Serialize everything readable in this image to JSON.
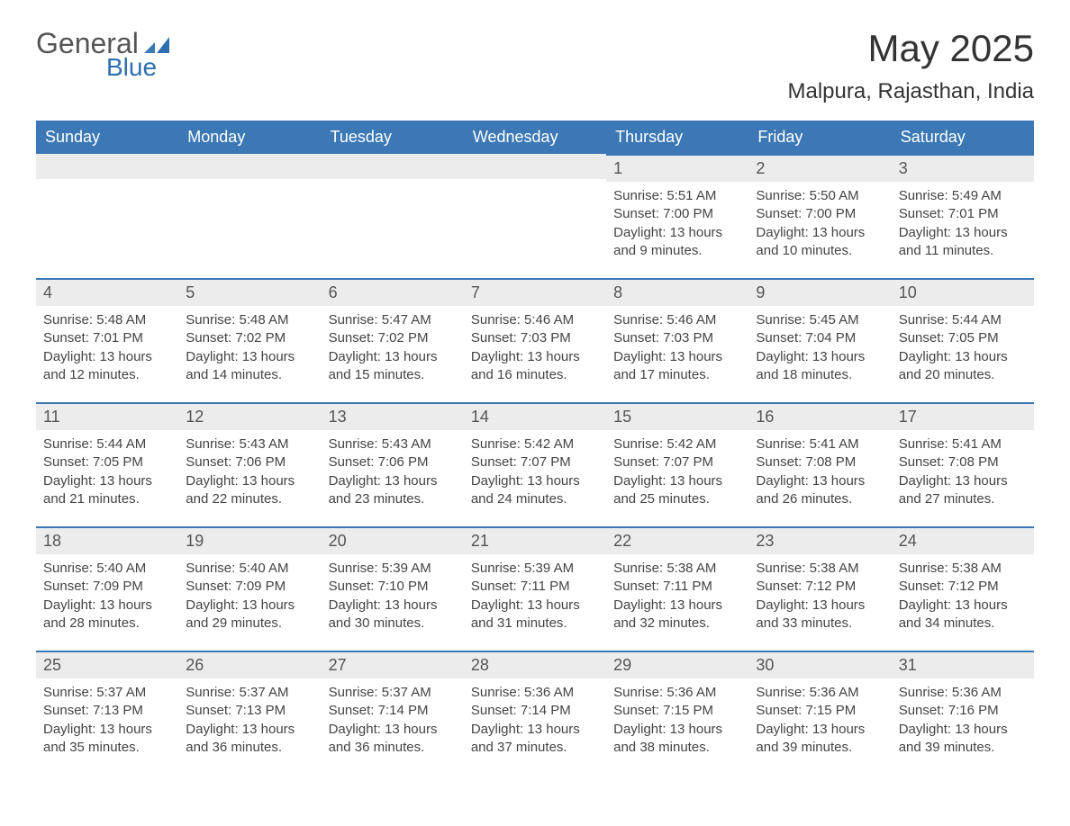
{
  "logo": {
    "text1": "General",
    "text2": "Blue"
  },
  "header": {
    "month_title": "May 2025",
    "location": "Malpura, Rajasthan, India"
  },
  "colors": {
    "header_bg": "#3b78b5",
    "header_text": "#ffffff",
    "day_bar_bg": "#ececec",
    "day_bar_border": "#3b78b5",
    "body_text": "#444444",
    "background": "#ffffff",
    "logo_blue": "#2f6fb0",
    "logo_gray": "#555555"
  },
  "day_headers": [
    "Sunday",
    "Monday",
    "Tuesday",
    "Wednesday",
    "Thursday",
    "Friday",
    "Saturday"
  ],
  "weeks": [
    [
      null,
      null,
      null,
      null,
      {
        "n": "1",
        "sr": "Sunrise: 5:51 AM",
        "ss": "Sunset: 7:00 PM",
        "dl": "Daylight: 13 hours and 9 minutes."
      },
      {
        "n": "2",
        "sr": "Sunrise: 5:50 AM",
        "ss": "Sunset: 7:00 PM",
        "dl": "Daylight: 13 hours and 10 minutes."
      },
      {
        "n": "3",
        "sr": "Sunrise: 5:49 AM",
        "ss": "Sunset: 7:01 PM",
        "dl": "Daylight: 13 hours and 11 minutes."
      }
    ],
    [
      {
        "n": "4",
        "sr": "Sunrise: 5:48 AM",
        "ss": "Sunset: 7:01 PM",
        "dl": "Daylight: 13 hours and 12 minutes."
      },
      {
        "n": "5",
        "sr": "Sunrise: 5:48 AM",
        "ss": "Sunset: 7:02 PM",
        "dl": "Daylight: 13 hours and 14 minutes."
      },
      {
        "n": "6",
        "sr": "Sunrise: 5:47 AM",
        "ss": "Sunset: 7:02 PM",
        "dl": "Daylight: 13 hours and 15 minutes."
      },
      {
        "n": "7",
        "sr": "Sunrise: 5:46 AM",
        "ss": "Sunset: 7:03 PM",
        "dl": "Daylight: 13 hours and 16 minutes."
      },
      {
        "n": "8",
        "sr": "Sunrise: 5:46 AM",
        "ss": "Sunset: 7:03 PM",
        "dl": "Daylight: 13 hours and 17 minutes."
      },
      {
        "n": "9",
        "sr": "Sunrise: 5:45 AM",
        "ss": "Sunset: 7:04 PM",
        "dl": "Daylight: 13 hours and 18 minutes."
      },
      {
        "n": "10",
        "sr": "Sunrise: 5:44 AM",
        "ss": "Sunset: 7:05 PM",
        "dl": "Daylight: 13 hours and 20 minutes."
      }
    ],
    [
      {
        "n": "11",
        "sr": "Sunrise: 5:44 AM",
        "ss": "Sunset: 7:05 PM",
        "dl": "Daylight: 13 hours and 21 minutes."
      },
      {
        "n": "12",
        "sr": "Sunrise: 5:43 AM",
        "ss": "Sunset: 7:06 PM",
        "dl": "Daylight: 13 hours and 22 minutes."
      },
      {
        "n": "13",
        "sr": "Sunrise: 5:43 AM",
        "ss": "Sunset: 7:06 PM",
        "dl": "Daylight: 13 hours and 23 minutes."
      },
      {
        "n": "14",
        "sr": "Sunrise: 5:42 AM",
        "ss": "Sunset: 7:07 PM",
        "dl": "Daylight: 13 hours and 24 minutes."
      },
      {
        "n": "15",
        "sr": "Sunrise: 5:42 AM",
        "ss": "Sunset: 7:07 PM",
        "dl": "Daylight: 13 hours and 25 minutes."
      },
      {
        "n": "16",
        "sr": "Sunrise: 5:41 AM",
        "ss": "Sunset: 7:08 PM",
        "dl": "Daylight: 13 hours and 26 minutes."
      },
      {
        "n": "17",
        "sr": "Sunrise: 5:41 AM",
        "ss": "Sunset: 7:08 PM",
        "dl": "Daylight: 13 hours and 27 minutes."
      }
    ],
    [
      {
        "n": "18",
        "sr": "Sunrise: 5:40 AM",
        "ss": "Sunset: 7:09 PM",
        "dl": "Daylight: 13 hours and 28 minutes."
      },
      {
        "n": "19",
        "sr": "Sunrise: 5:40 AM",
        "ss": "Sunset: 7:09 PM",
        "dl": "Daylight: 13 hours and 29 minutes."
      },
      {
        "n": "20",
        "sr": "Sunrise: 5:39 AM",
        "ss": "Sunset: 7:10 PM",
        "dl": "Daylight: 13 hours and 30 minutes."
      },
      {
        "n": "21",
        "sr": "Sunrise: 5:39 AM",
        "ss": "Sunset: 7:11 PM",
        "dl": "Daylight: 13 hours and 31 minutes."
      },
      {
        "n": "22",
        "sr": "Sunrise: 5:38 AM",
        "ss": "Sunset: 7:11 PM",
        "dl": "Daylight: 13 hours and 32 minutes."
      },
      {
        "n": "23",
        "sr": "Sunrise: 5:38 AM",
        "ss": "Sunset: 7:12 PM",
        "dl": "Daylight: 13 hours and 33 minutes."
      },
      {
        "n": "24",
        "sr": "Sunrise: 5:38 AM",
        "ss": "Sunset: 7:12 PM",
        "dl": "Daylight: 13 hours and 34 minutes."
      }
    ],
    [
      {
        "n": "25",
        "sr": "Sunrise: 5:37 AM",
        "ss": "Sunset: 7:13 PM",
        "dl": "Daylight: 13 hours and 35 minutes."
      },
      {
        "n": "26",
        "sr": "Sunrise: 5:37 AM",
        "ss": "Sunset: 7:13 PM",
        "dl": "Daylight: 13 hours and 36 minutes."
      },
      {
        "n": "27",
        "sr": "Sunrise: 5:37 AM",
        "ss": "Sunset: 7:14 PM",
        "dl": "Daylight: 13 hours and 36 minutes."
      },
      {
        "n": "28",
        "sr": "Sunrise: 5:36 AM",
        "ss": "Sunset: 7:14 PM",
        "dl": "Daylight: 13 hours and 37 minutes."
      },
      {
        "n": "29",
        "sr": "Sunrise: 5:36 AM",
        "ss": "Sunset: 7:15 PM",
        "dl": "Daylight: 13 hours and 38 minutes."
      },
      {
        "n": "30",
        "sr": "Sunrise: 5:36 AM",
        "ss": "Sunset: 7:15 PM",
        "dl": "Daylight: 13 hours and 39 minutes."
      },
      {
        "n": "31",
        "sr": "Sunrise: 5:36 AM",
        "ss": "Sunset: 7:16 PM",
        "dl": "Daylight: 13 hours and 39 minutes."
      }
    ]
  ]
}
